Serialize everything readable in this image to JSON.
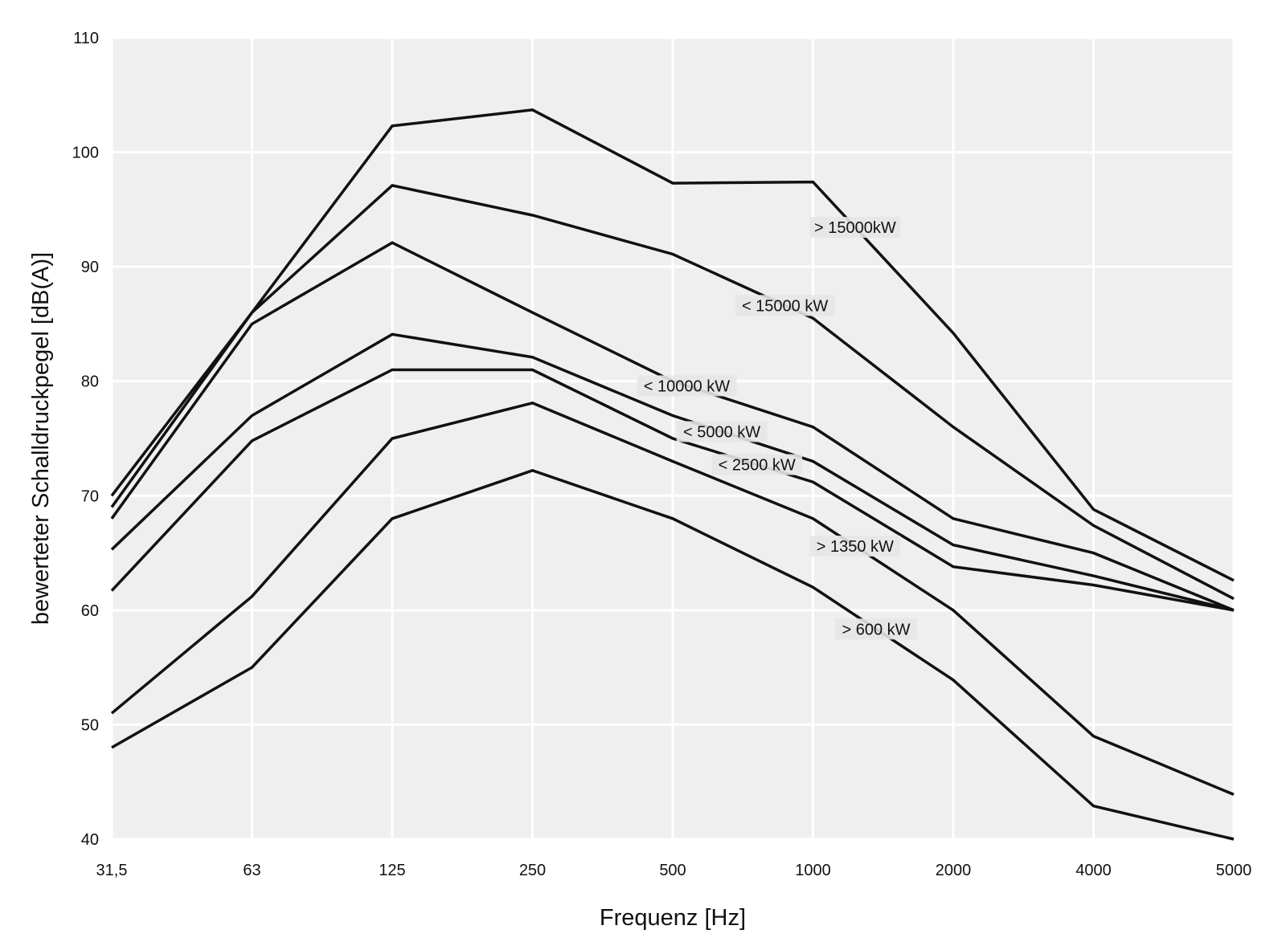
{
  "chart_data": {
    "type": "line",
    "title": "",
    "xlabel": "Frequenz [Hz]",
    "ylabel": "bewerteter Schalldruckpegel [dB(A)]",
    "categories": [
      "31,5",
      "63",
      "125",
      "250",
      "500",
      "1000",
      "2000",
      "4000",
      "5000"
    ],
    "ylim": [
      40,
      110
    ],
    "yticks": [
      40,
      50,
      60,
      70,
      80,
      90,
      100,
      110
    ],
    "grid": true,
    "legend": "none",
    "colors": {
      "panel": "#efefef",
      "grid": "#ffffff",
      "line": "#111111",
      "label_bg": "#e6e6e6"
    },
    "series": [
      {
        "name": "> 15000kW",
        "values": [
          70,
          86,
          102.3,
          103.7,
          97.3,
          97.4,
          84.2,
          68.8,
          62.6
        ],
        "label_at": 5.3
      },
      {
        "name": "< 15000 kW",
        "values": [
          69,
          86,
          97.1,
          94.5,
          91.1,
          85.5,
          76,
          67.4,
          61
        ],
        "label_at": 4.8
      },
      {
        "name": "< 10000 kW",
        "values": [
          68,
          85,
          92.1,
          86,
          80,
          76,
          68,
          65,
          60
        ],
        "label_at": 4.1
      },
      {
        "name": "< 5000 kW",
        "values": [
          65.3,
          77,
          84.1,
          82.1,
          77,
          73,
          65.7,
          63,
          60
        ],
        "label_at": 4.35
      },
      {
        "name": "< 2500 kW",
        "values": [
          61.7,
          74.8,
          81,
          81,
          75,
          71.2,
          63.8,
          62.2,
          60
        ],
        "label_at": 4.6
      },
      {
        "name": "> 1350 kW",
        "values": [
          51,
          61.2,
          75,
          78.1,
          73,
          68,
          60,
          49,
          43.9
        ],
        "label_at": 5.3
      },
      {
        "name": "> 600 kW",
        "values": [
          48,
          55,
          68,
          72.2,
          68,
          62,
          53.9,
          42.9,
          40
        ],
        "label_at": 5.45
      }
    ]
  }
}
